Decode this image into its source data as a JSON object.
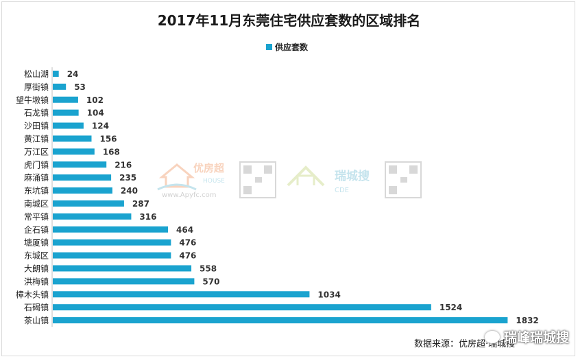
{
  "chart_data": {
    "type": "bar",
    "orientation": "horizontal",
    "title": "2017年11月东莞住宅供应套数的区域排名",
    "legend": {
      "position": "top",
      "entries": [
        "供应套数"
      ]
    },
    "series": [
      {
        "name": "供应套数",
        "color": "#1aa3cf"
      }
    ],
    "categories": [
      "松山湖",
      "厚街镇",
      "望牛墩镇",
      "石龙镇",
      "沙田镇",
      "黄江镇",
      "万江区",
      "虎门镇",
      "麻涌镇",
      "东坑镇",
      "南城区",
      "常平镇",
      "企石镇",
      "塘厦镇",
      "东城区",
      "大朗镇",
      "洪梅镇",
      "樟木头镇",
      "石碣镇",
      "茶山镇"
    ],
    "values": [
      24,
      53,
      102,
      104,
      124,
      156,
      168,
      216,
      235,
      240,
      287,
      316,
      464,
      476,
      476,
      558,
      570,
      1034,
      1524,
      1832
    ],
    "xlim": [
      0,
      1900
    ],
    "grid": false
  },
  "source_text": "数据来源：优房超·瑞城搜",
  "watermarks": {
    "brand": "瑞峰瑞城搜",
    "logo1_text": "优房超",
    "logo1_sub": "HOUSE",
    "logo1_url": "www.Apyfc.com",
    "logo2_text": "瑞城搜",
    "logo2_sub": "CDE"
  }
}
